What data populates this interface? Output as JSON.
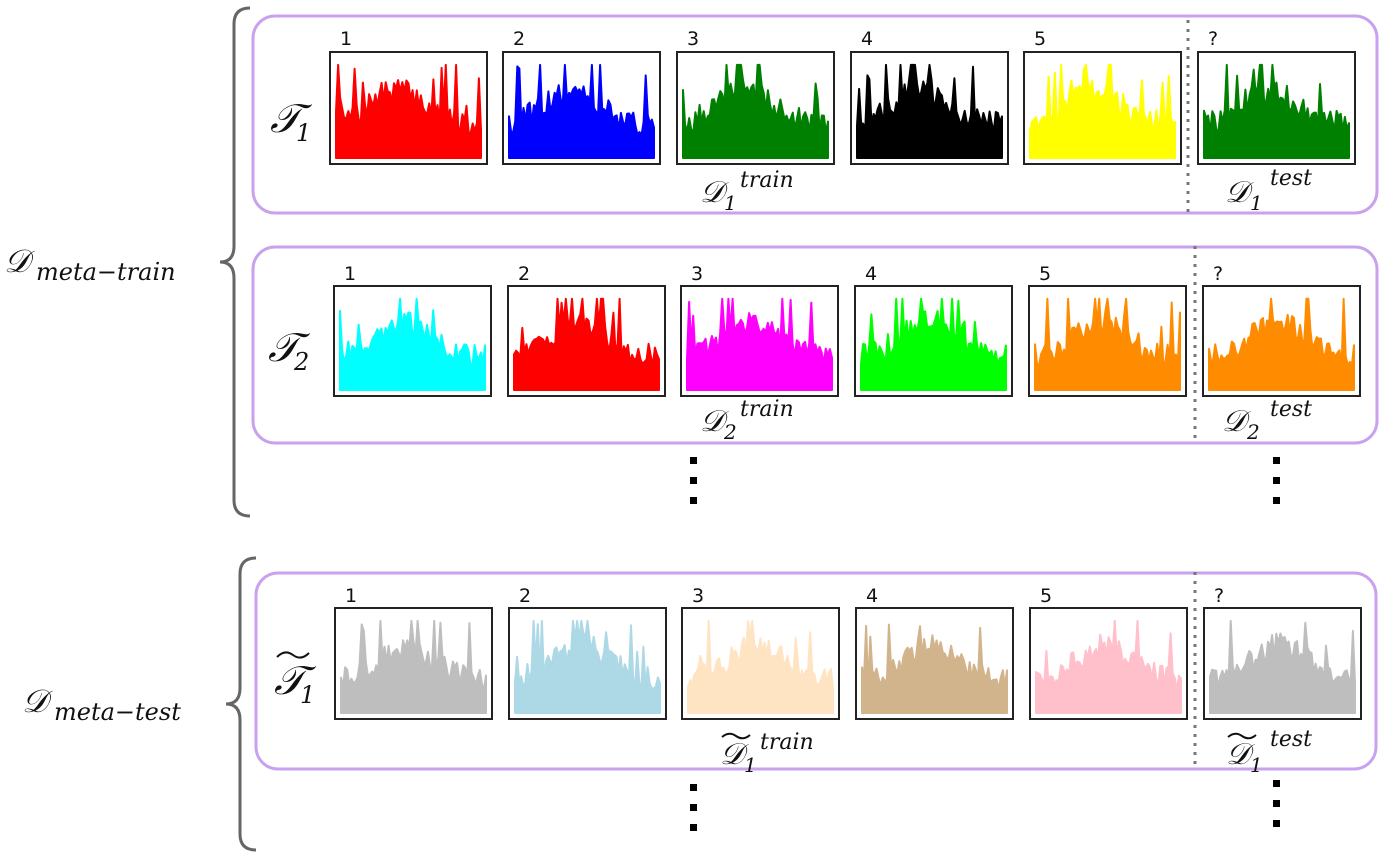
{
  "groups": [
    {
      "set_symbol": "𝒟",
      "set_subscript": "meta−train",
      "tasks": [
        {
          "task_symbol": "𝒯",
          "task_index": "1",
          "tilde": false,
          "train_symbol": "𝒟",
          "train_index": "1",
          "train_sup": "train",
          "test_symbol": "𝒟",
          "test_index": "1",
          "test_sup": "test",
          "panels": [
            {
              "label": "1",
              "color": "#ff0000"
            },
            {
              "label": "2",
              "color": "#0000ff"
            },
            {
              "label": "3",
              "color": "#008000"
            },
            {
              "label": "4",
              "color": "#000000"
            },
            {
              "label": "5",
              "color": "#ffff00"
            },
            {
              "label": "?",
              "color": "#008000"
            }
          ]
        },
        {
          "task_symbol": "𝒯",
          "task_index": "2",
          "tilde": false,
          "train_symbol": "𝒟",
          "train_index": "2",
          "train_sup": "train",
          "test_symbol": "𝒟",
          "test_index": "2",
          "test_sup": "test",
          "panels": [
            {
              "label": "1",
              "color": "#00ffff"
            },
            {
              "label": "2",
              "color": "#ff0000"
            },
            {
              "label": "3",
              "color": "#ff00ff"
            },
            {
              "label": "4",
              "color": "#00ff00"
            },
            {
              "label": "5",
              "color": "#ff8c00"
            },
            {
              "label": "?",
              "color": "#ff8c00"
            }
          ]
        }
      ]
    },
    {
      "set_symbol": "𝒟",
      "set_subscript": "meta−test",
      "tasks": [
        {
          "task_symbol": "𝒯",
          "task_index": "1",
          "tilde": true,
          "train_symbol": "𝒟",
          "train_index": "1",
          "train_sup": "train",
          "test_symbol": "𝒟",
          "test_index": "1",
          "test_sup": "test",
          "panels": [
            {
              "label": "1",
              "color": "#bebebe"
            },
            {
              "label": "2",
              "color": "#add8e6"
            },
            {
              "label": "3",
              "color": "#ffe4c4"
            },
            {
              "label": "4",
              "color": "#d2b48c"
            },
            {
              "label": "5",
              "color": "#ffc0cb"
            },
            {
              "label": "?",
              "color": "#bebebe"
            }
          ]
        }
      ]
    }
  ]
}
